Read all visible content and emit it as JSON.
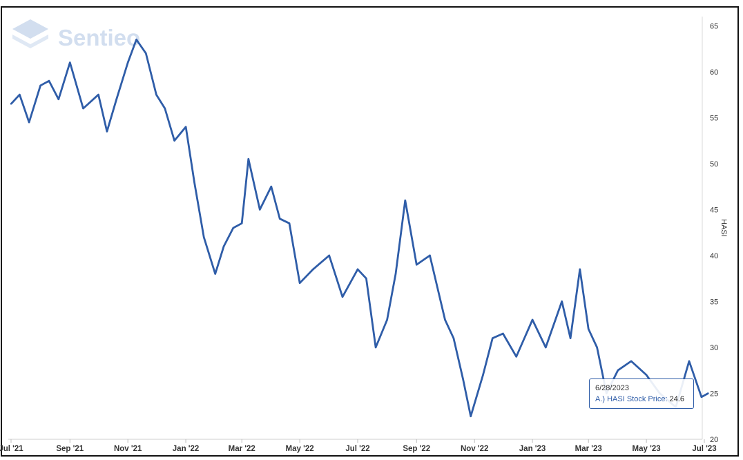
{
  "brand": {
    "name": "Sentieo"
  },
  "tooltip": {
    "date": "6/28/2023",
    "series": "A.) HASI Stock Price:",
    "value": "24.6"
  },
  "chart_data": {
    "type": "line",
    "title": "",
    "xlabel": "",
    "ylabel": "HASI",
    "y_axis_side": "right",
    "ylim": [
      20,
      66
    ],
    "y_ticks": [
      20,
      25,
      30,
      35,
      40,
      45,
      50,
      55,
      60,
      65
    ],
    "x_ticks": [
      "Jul '21",
      "Sep '21",
      "Nov '21",
      "Jan '22",
      "Mar '22",
      "May '22",
      "Jul '22",
      "Sep '22",
      "Nov '22",
      "Jan '23",
      "Mar '23",
      "May '23",
      "Jul '23"
    ],
    "grid": false,
    "line_color": "#2f5da8",
    "series": [
      {
        "name": "A.) HASI Stock Price",
        "x": [
          "2021-07-01",
          "2021-07-10",
          "2021-07-20",
          "2021-08-01",
          "2021-08-10",
          "2021-08-20",
          "2021-09-01",
          "2021-09-15",
          "2021-10-01",
          "2021-10-10",
          "2021-10-20",
          "2021-11-01",
          "2021-11-10",
          "2021-11-20",
          "2021-12-01",
          "2021-12-10",
          "2021-12-20",
          "2022-01-01",
          "2022-01-10",
          "2022-01-20",
          "2022-02-01",
          "2022-02-10",
          "2022-02-20",
          "2022-03-01",
          "2022-03-08",
          "2022-03-20",
          "2022-04-01",
          "2022-04-10",
          "2022-04-20",
          "2022-05-01",
          "2022-05-15",
          "2022-06-01",
          "2022-06-15",
          "2022-07-01",
          "2022-07-10",
          "2022-07-20",
          "2022-08-01",
          "2022-08-10",
          "2022-08-20",
          "2022-09-01",
          "2022-09-15",
          "2022-10-01",
          "2022-10-10",
          "2022-10-20",
          "2022-10-28",
          "2022-11-10",
          "2022-11-20",
          "2022-12-01",
          "2022-12-15",
          "2023-01-01",
          "2023-01-15",
          "2023-02-01",
          "2023-02-10",
          "2023-02-20",
          "2023-03-01",
          "2023-03-10",
          "2023-03-20",
          "2023-04-01",
          "2023-04-15",
          "2023-05-01",
          "2023-05-15",
          "2023-06-01",
          "2023-06-15",
          "2023-06-28",
          "2023-07-05"
        ],
        "values": [
          56.5,
          57.5,
          54.5,
          58.5,
          59,
          57,
          61,
          56,
          57.5,
          53.5,
          57,
          61,
          63.5,
          62,
          57.5,
          56,
          52.5,
          54,
          48,
          42,
          38,
          41,
          43,
          43.5,
          50.5,
          45,
          47.5,
          44,
          43.5,
          37,
          38.5,
          40,
          35.5,
          38.5,
          37.5,
          30,
          33,
          38,
          46,
          39,
          40,
          33,
          31,
          26.5,
          22.5,
          27,
          31,
          31.5,
          29,
          33,
          30,
          35,
          31,
          38.5,
          32,
          30,
          25,
          27.5,
          28.5,
          27,
          25,
          23.5,
          28.5,
          24.6,
          25
        ]
      }
    ]
  }
}
